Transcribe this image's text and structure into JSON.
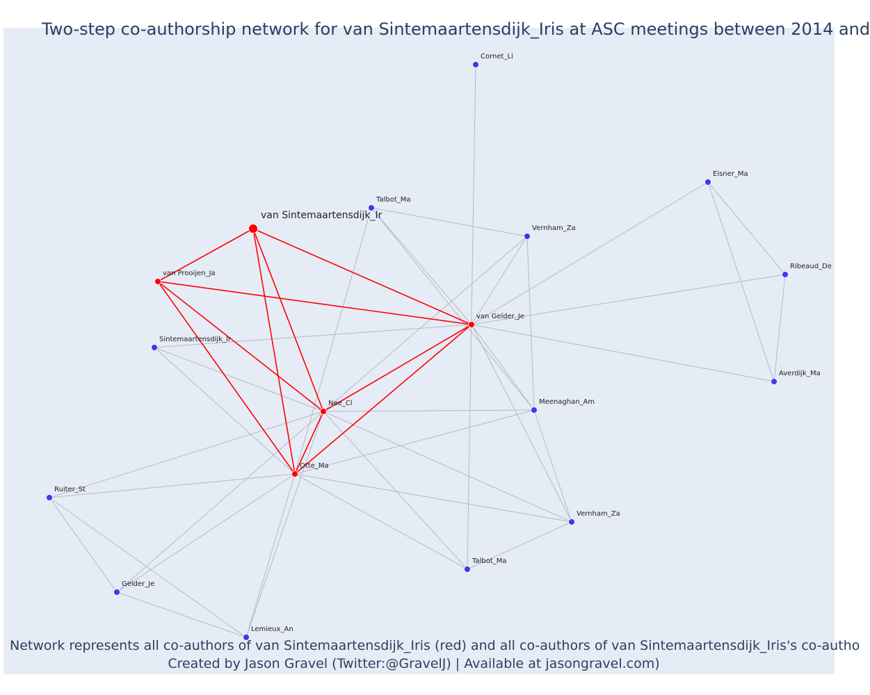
{
  "title": "Two-step co-authorship network for van Sintemaartensdijk_Iris at ASC meetings between 2014 and",
  "caption_line1": "Network represents all co-authors of van Sintemaartensdijk_Iris (red) and all co-authors of van Sintemaartensdijk_Iris's co-autho",
  "caption_line2": "Created by Jason Gravel (Twitter:@GravelJ) | Available at jasongravel.com)",
  "colors": {
    "background": "#e5ecf6",
    "red": "#ff0000",
    "blue": "#3b3bf0",
    "edge_gray": "#b3b8c8",
    "text": "#2a3f5f"
  },
  "nodes": [
    {
      "id": "focal",
      "label": "van Sintemaartensdijk_Ir",
      "group": "focal"
    },
    {
      "id": "vanPrjJa",
      "label": "van Prooijen_Ja",
      "group": "red"
    },
    {
      "id": "vanGelJe",
      "label": "van Gelder_Je",
      "group": "red"
    },
    {
      "id": "NeeCl",
      "label": "Nee_Cl",
      "group": "red"
    },
    {
      "id": "OtteMa",
      "label": "Otte_Ma",
      "group": "red"
    },
    {
      "id": "CornetLi",
      "label": "Cornet_Li",
      "group": "blue"
    },
    {
      "id": "EisnerMa",
      "label": "Eisner_Ma",
      "group": "blue"
    },
    {
      "id": "TalbotMa1",
      "label": "Talbot_Ma",
      "group": "blue"
    },
    {
      "id": "VernhamZa1",
      "label": "Vernham_Za",
      "group": "blue"
    },
    {
      "id": "RibeaudDe",
      "label": "Ribeaud_De",
      "group": "blue"
    },
    {
      "id": "SintIr",
      "label": "Sintemaartensdijk_Ir",
      "group": "blue"
    },
    {
      "id": "AverdijkMa",
      "label": "Averdijk_Ma",
      "group": "blue"
    },
    {
      "id": "MeenaghanAm",
      "label": "Meenaghan_Am",
      "group": "blue"
    },
    {
      "id": "RuiterSt",
      "label": "Ruiter_St",
      "group": "blue"
    },
    {
      "id": "VernhamZa2",
      "label": "Vernham_Za",
      "group": "blue"
    },
    {
      "id": "TalbotMa2",
      "label": "Talbot_Ma",
      "group": "blue"
    },
    {
      "id": "GelderJe",
      "label": "Gelder_Je",
      "group": "blue"
    },
    {
      "id": "LemieuxAn",
      "label": "Lemieux_An",
      "group": "blue"
    }
  ],
  "edges_red": [
    [
      "focal",
      "vanPrjJa"
    ],
    [
      "focal",
      "vanGelJe"
    ],
    [
      "focal",
      "NeeCl"
    ],
    [
      "focal",
      "OtteMa"
    ],
    [
      "vanPrjJa",
      "vanGelJe"
    ],
    [
      "vanPrjJa",
      "NeeCl"
    ],
    [
      "vanPrjJa",
      "OtteMa"
    ],
    [
      "vanGelJe",
      "NeeCl"
    ],
    [
      "vanGelJe",
      "OtteMa"
    ],
    [
      "NeeCl",
      "OtteMa"
    ]
  ],
  "edges_gray": [
    [
      "CornetLi",
      "TalbotMa2"
    ],
    [
      "EisnerMa",
      "vanGelJe"
    ],
    [
      "EisnerMa",
      "RibeaudDe"
    ],
    [
      "EisnerMa",
      "AverdijkMa"
    ],
    [
      "RibeaudDe",
      "AverdijkMa"
    ],
    [
      "RibeaudDe",
      "vanGelJe"
    ],
    [
      "AverdijkMa",
      "vanGelJe"
    ],
    [
      "TalbotMa1",
      "vanGelJe"
    ],
    [
      "TalbotMa1",
      "VernhamZa1"
    ],
    [
      "TalbotMa1",
      "MeenaghanAm"
    ],
    [
      "TalbotMa1",
      "OtteMa"
    ],
    [
      "VernhamZa1",
      "vanGelJe"
    ],
    [
      "VernhamZa1",
      "MeenaghanAm"
    ],
    [
      "VernhamZa1",
      "NeeCl"
    ],
    [
      "SintIr",
      "vanGelJe"
    ],
    [
      "SintIr",
      "NeeCl"
    ],
    [
      "SintIr",
      "OtteMa"
    ],
    [
      "vanGelJe",
      "MeenaghanAm"
    ],
    [
      "vanGelJe",
      "VernhamZa2"
    ],
    [
      "NeeCl",
      "MeenaghanAm"
    ],
    [
      "NeeCl",
      "VernhamZa2"
    ],
    [
      "NeeCl",
      "TalbotMa2"
    ],
    [
      "NeeCl",
      "RuiterSt"
    ],
    [
      "NeeCl",
      "GelderJe"
    ],
    [
      "NeeCl",
      "LemieuxAn"
    ],
    [
      "OtteMa",
      "MeenaghanAm"
    ],
    [
      "OtteMa",
      "VernhamZa2"
    ],
    [
      "OtteMa",
      "TalbotMa2"
    ],
    [
      "OtteMa",
      "RuiterSt"
    ],
    [
      "OtteMa",
      "GelderJe"
    ],
    [
      "OtteMa",
      "LemieuxAn"
    ],
    [
      "MeenaghanAm",
      "VernhamZa2"
    ],
    [
      "VernhamZa2",
      "TalbotMa2"
    ],
    [
      "RuiterSt",
      "GelderJe"
    ],
    [
      "RuiterSt",
      "LemieuxAn"
    ],
    [
      "GelderJe",
      "LemieuxAn"
    ]
  ]
}
